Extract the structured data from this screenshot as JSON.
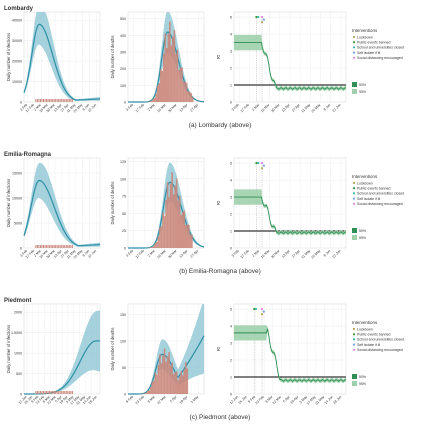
{
  "colors": {
    "model": "#2e8fa6",
    "model_light": "#8fc7d5",
    "bars": "#c9867a",
    "rt": "#2f8f55",
    "rt_light": "#9fd0ac",
    "threshold": "#000000",
    "grid": "#ebebeb",
    "int_lockdown": "#b5a45a",
    "int_public": "#3a9a3a",
    "int_school": "#3cb7a7",
    "int_selfisolate": "#7aa0e0",
    "int_distancing": "#e084e0"
  },
  "legend": {
    "title": "Interventions",
    "items": [
      {
        "label": "Lockdown",
        "color_key": "int_lockdown"
      },
      {
        "label": "Public events banned",
        "color_key": "int_public"
      },
      {
        "label": "School and universities closed",
        "color_key": "int_school"
      },
      {
        "label": "Self isolate if ill",
        "color_key": "int_selfisolate"
      },
      {
        "label": "Social distancing encouraged",
        "color_key": "int_distancing"
      }
    ],
    "ci": [
      "50%",
      "95%"
    ]
  },
  "chart_data": [
    {
      "region": "Lombardy",
      "caption": "(a) Lombardy (above)",
      "infections": {
        "type": "area",
        "ylabel": "Daily number of infections",
        "yticks": [
          0,
          10000,
          20000,
          30000,
          40000
        ],
        "ymax": 44000,
        "xticks": [
          "3 Feb",
          "17 Feb",
          "2 Mar",
          "16 Mar",
          "30 Mar",
          "13 Apr",
          "27 Apr",
          "11 May",
          "25 May",
          "8 Jun",
          "22 Jun"
        ],
        "peak_value": 38000,
        "peak_pos": 0.2,
        "tail": 0.04,
        "spread": 0.25
      },
      "deaths": {
        "type": "bar",
        "ylabel": "Daily number of deaths",
        "yticks": [
          0,
          100,
          200,
          300,
          400,
          500
        ],
        "ymax": 540,
        "xticks": [
          "3 Feb",
          "17 Feb",
          "2 Mar",
          "16 Mar",
          "30 Mar",
          "13 Apr",
          "27 Apr"
        ],
        "peak_value": 420,
        "peak_pos": 0.52,
        "end_value": 0,
        "spread": 0.2
      },
      "rt": {
        "type": "line",
        "ylabel": "Rt",
        "yticks": [
          0,
          1,
          2,
          3,
          4,
          5
        ],
        "ymax": 5.3,
        "xticks": [
          "3 Feb",
          "17 Feb",
          "2 Mar",
          "16 Mar",
          "30 Mar",
          "13 Apr",
          "27 Apr",
          "11 May",
          "25 May",
          "8 Jun",
          "22 Jun"
        ],
        "start": 3.5,
        "drop_pos": 0.25,
        "end": 0.8,
        "int_pos": [
          0.2,
          0.25
        ],
        "marker_labels": [
          "",
          ""
        ]
      }
    },
    {
      "region": "Emilia-Romagna",
      "caption": "(b) Emilia-Romagna (above)",
      "infections": {
        "type": "area",
        "ylabel": "Daily number of infections",
        "yticks": [
          0,
          5000,
          10000,
          15000
        ],
        "ymax": 18000,
        "xticks": [
          "3 Feb",
          "17 Feb",
          "2 Mar",
          "16 Mar",
          "30 Mar",
          "13 Apr",
          "27 Apr",
          "11 May",
          "25 May",
          "8 Jun",
          "22 Jun"
        ],
        "peak_value": 13500,
        "peak_pos": 0.2,
        "tail": 0.05,
        "spread": 0.28
      },
      "deaths": {
        "type": "bar",
        "ylabel": "Daily number of deaths",
        "yticks": [
          0,
          25,
          50,
          75,
          100,
          125
        ],
        "ymax": 130,
        "xticks": [
          "3 Feb",
          "17 Feb",
          "2 Mar",
          "16 Mar",
          "30 Mar",
          "13 Apr",
          "27 Apr"
        ],
        "peak_value": 95,
        "peak_pos": 0.55,
        "end_value": 0,
        "spread": 0.22
      },
      "rt": {
        "type": "line",
        "ylabel": "Rt",
        "yticks": [
          0,
          1,
          2,
          3,
          4,
          5
        ],
        "ymax": 5.3,
        "xticks": [
          "3 Feb",
          "17 Feb",
          "2 Mar",
          "16 Mar",
          "30 Mar",
          "13 Apr",
          "27 Apr",
          "11 May",
          "25 May",
          "8 Jun",
          "22 Jun"
        ],
        "start": 3.0,
        "drop_pos": 0.25,
        "end": 0.9,
        "int_pos": [
          0.2,
          0.25
        ],
        "marker_labels": [
          "",
          ""
        ]
      }
    },
    {
      "region": "Piedmont",
      "caption": "(c) Piedmont (above)",
      "infections": {
        "type": "area",
        "ylabel": "Daily number of infections",
        "yticks": [
          0,
          500,
          1000,
          1500,
          2000
        ],
        "ymax": 2200,
        "xticks": [
          "12 Jan",
          "26 Jan",
          "9 Feb",
          "23 Feb",
          "8 Mar",
          "22 Mar",
          "5 Apr",
          "19 Apr",
          "3 May",
          "17 May",
          "31 May",
          "14 Jun",
          "28 Jun"
        ],
        "peak_value": 1300,
        "peak_pos": 0.95,
        "tail": 1.0,
        "spread": 0.55
      },
      "deaths": {
        "type": "bar",
        "ylabel": "Daily number of deaths",
        "yticks": [
          0,
          50,
          100,
          150
        ],
        "ymax": 170,
        "xticks": [
          "9 Feb",
          "23 Feb",
          "8 Mar",
          "22 Mar",
          "5 Apr",
          "19 Apr",
          "3 May"
        ],
        "peak_value": 75,
        "peak_pos": 0.45,
        "end_value": 110,
        "spread": 0.22
      },
      "rt": {
        "type": "line",
        "ylabel": "Rt",
        "yticks": [
          0,
          1,
          2,
          3,
          4,
          5
        ],
        "ymax": 5.3,
        "xticks": [
          "12 Jan",
          "26 Jan",
          "9 Feb",
          "23 Feb",
          "8 Mar",
          "22 Mar",
          "5 Apr",
          "19 Apr",
          "3 May",
          "17 May",
          "31 May",
          "14 Jun",
          "28 Jun"
        ],
        "start": 3.6,
        "drop_pos": 0.3,
        "end": 0.8,
        "int_pos": [
          0.18,
          0.25
        ],
        "marker_labels": [
          "",
          ""
        ]
      }
    }
  ]
}
